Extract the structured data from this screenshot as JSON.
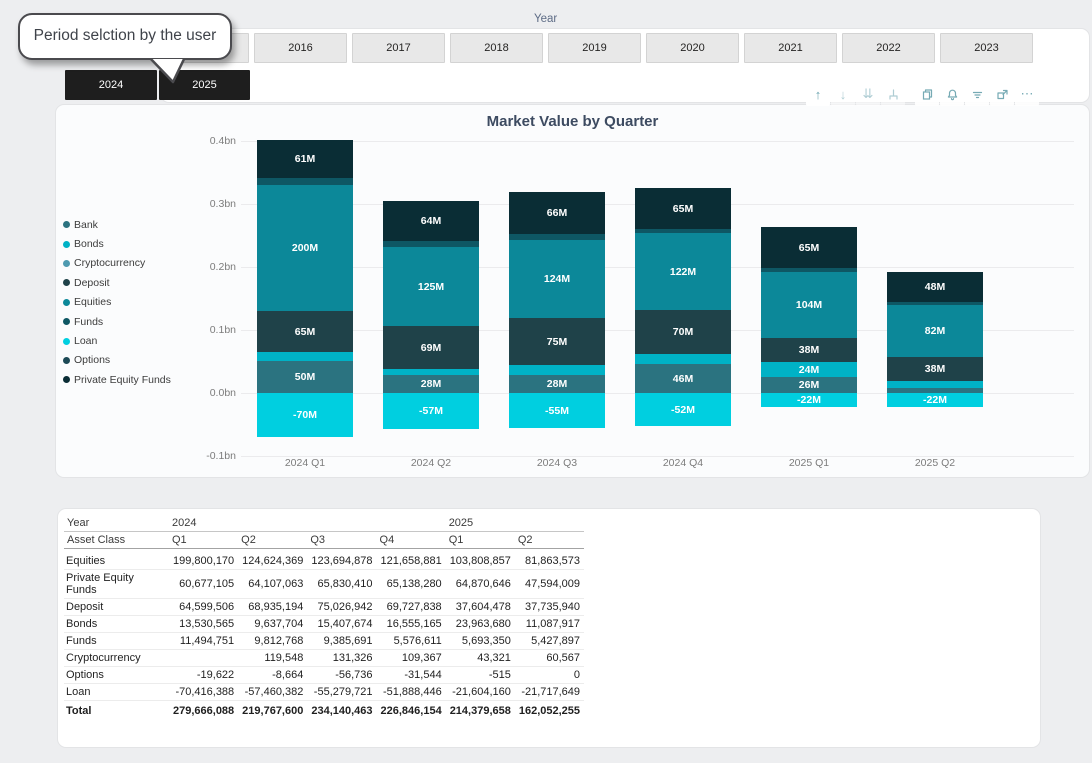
{
  "annotation_tooltip": {
    "text": "Period selction by the user"
  },
  "slicer": {
    "title": "Year",
    "row1": [
      "",
      "2016",
      "2017",
      "2018",
      "2019",
      "2020",
      "2021",
      "2022",
      "2023"
    ],
    "row2": [
      "2024",
      "2025"
    ],
    "selected": [
      "2024",
      "2025"
    ]
  },
  "toolbar": {
    "icons": [
      "drill-up-icon",
      "drill-down-icon",
      "expand-all-down-icon",
      "expand-next-level-icon",
      "copy-icon",
      "alert-icon",
      "filter-icon",
      "focus-mode-icon",
      "more-options-icon"
    ]
  },
  "chart": {
    "title": "Market Value by Quarter",
    "accent_color": "#0c8899"
  },
  "chart_data": {
    "type": "bar",
    "stacked": true,
    "title": "Market Value by Quarter",
    "unit": "millions",
    "categories": [
      "2024 Q1",
      "2024 Q2",
      "2024 Q3",
      "2024 Q4",
      "2025 Q1",
      "2025 Q2"
    ],
    "ylim": [
      -100,
      400
    ],
    "y_tick_labels": [
      "0.4bn",
      "0.3bn",
      "0.2bn",
      "0.1bn",
      "0.0bn",
      "-0.1bn"
    ],
    "grid": true,
    "legend_position": "left",
    "series": [
      {
        "name": "Bank",
        "color": "#2b7380",
        "values": [
          50,
          28,
          28,
          46,
          26,
          8
        ],
        "labels": [
          "50M",
          "28M",
          "28M",
          "46M",
          "26M",
          ""
        ]
      },
      {
        "name": "Bonds",
        "color": "#00b2c6",
        "values": [
          13.5,
          9.6,
          15.4,
          16.6,
          24,
          11
        ],
        "labels": [
          "",
          "",
          "",
          "",
          "24M",
          ""
        ]
      },
      {
        "name": "Cryptocurrency",
        "color": "#4e9ab0",
        "values": [
          0,
          0.12,
          0.13,
          0.11,
          0.04,
          0.06
        ],
        "labels": [
          "",
          "",
          "",
          "",
          "",
          ""
        ]
      },
      {
        "name": "Deposit",
        "color": "#1f4249",
        "values": [
          65,
          69,
          75,
          70,
          38,
          38
        ],
        "labels": [
          "65M",
          "69M",
          "75M",
          "70M",
          "38M",
          "38M"
        ]
      },
      {
        "name": "Equities",
        "color": "#0c8899",
        "values": [
          200,
          125,
          124,
          122,
          104,
          82
        ],
        "labels": [
          "200M",
          "125M",
          "124M",
          "122M",
          "104M",
          "82M"
        ]
      },
      {
        "name": "Funds",
        "color": "#0e5764",
        "values": [
          11.5,
          9.8,
          9.4,
          5.6,
          5.7,
          5.4
        ],
        "labels": [
          "",
          "",
          "",
          "",
          "",
          ""
        ]
      },
      {
        "name": "Loan",
        "color": "#00cfe0",
        "values": [
          -70,
          -57,
          -55,
          -52,
          -22,
          -22
        ],
        "labels": [
          "-70M",
          "-57M",
          "-55M",
          "-52M",
          "-22M",
          "-22M"
        ]
      },
      {
        "name": "Options",
        "color": "#1c4956",
        "values": [
          0,
          0,
          0,
          0,
          0,
          0
        ],
        "labels": [
          "",
          "",
          "",
          "",
          "",
          ""
        ]
      },
      {
        "name": "Private Equity Funds",
        "color": "#0a2d35",
        "values": [
          61,
          64,
          66,
          65,
          65,
          48
        ],
        "labels": [
          "61M",
          "64M",
          "66M",
          "65M",
          "65M",
          "48M"
        ]
      }
    ]
  },
  "table": {
    "year_header": {
      "label": "Year",
      "groups": [
        {
          "label": "2024",
          "span": 4
        },
        {
          "label": "2025",
          "span": 2
        }
      ]
    },
    "quarter_header": {
      "label": "Asset Class",
      "cols": [
        "Q1",
        "Q2",
        "Q3",
        "Q4",
        "Q1",
        "Q2"
      ]
    },
    "rows": [
      {
        "label": "Equities",
        "values": [
          "199,800,170",
          "124,624,369",
          "123,694,878",
          "121,658,881",
          "103,808,857",
          "81,863,573"
        ]
      },
      {
        "label": "Private Equity Funds",
        "values": [
          "60,677,105",
          "64,107,063",
          "65,830,410",
          "65,138,280",
          "64,870,646",
          "47,594,009"
        ]
      },
      {
        "label": "Deposit",
        "values": [
          "64,599,506",
          "68,935,194",
          "75,026,942",
          "69,727,838",
          "37,604,478",
          "37,735,940"
        ]
      },
      {
        "label": "Bonds",
        "values": [
          "13,530,565",
          "9,637,704",
          "15,407,674",
          "16,555,165",
          "23,963,680",
          "11,087,917"
        ]
      },
      {
        "label": "Funds",
        "values": [
          "11,494,751",
          "9,812,768",
          "9,385,691",
          "5,576,611",
          "5,693,350",
          "5,427,897"
        ]
      },
      {
        "label": "Cryptocurrency",
        "values": [
          "",
          "119,548",
          "131,326",
          "109,367",
          "43,321",
          "60,567"
        ]
      },
      {
        "label": "Options",
        "values": [
          "-19,622",
          "-8,664",
          "-56,736",
          "-31,544",
          "-515",
          "0"
        ]
      },
      {
        "label": "Loan",
        "values": [
          "-70,416,388",
          "-57,460,382",
          "-55,279,721",
          "-51,888,446",
          "-21,604,160",
          "-21,717,649"
        ]
      }
    ],
    "total_row": {
      "label": "Total",
      "values": [
        "279,666,088",
        "219,767,600",
        "234,140,463",
        "226,846,154",
        "214,379,658",
        "162,052,255"
      ]
    }
  }
}
